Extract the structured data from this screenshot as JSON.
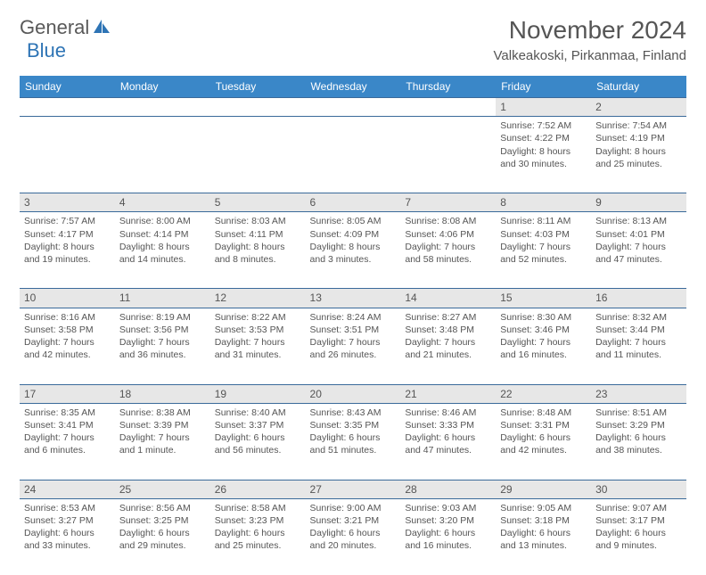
{
  "logo": {
    "word1": "General",
    "word2": "Blue"
  },
  "title": "November 2024",
  "location": "Valkeakoski, Pirkanmaa, Finland",
  "colors": {
    "header_bg": "#3a87c8",
    "daynum_bg": "#e7e7e7",
    "border": "#3a6a9a",
    "text": "#555555",
    "logo_blue": "#2e74b5"
  },
  "weekdays": [
    "Sunday",
    "Monday",
    "Tuesday",
    "Wednesday",
    "Thursday",
    "Friday",
    "Saturday"
  ],
  "weeks": [
    [
      null,
      null,
      null,
      null,
      null,
      {
        "d": "1",
        "sr": "7:52 AM",
        "ss": "4:22 PM",
        "dl": "Daylight: 8 hours and 30 minutes."
      },
      {
        "d": "2",
        "sr": "7:54 AM",
        "ss": "4:19 PM",
        "dl": "Daylight: 8 hours and 25 minutes."
      }
    ],
    [
      {
        "d": "3",
        "sr": "7:57 AM",
        "ss": "4:17 PM",
        "dl": "Daylight: 8 hours and 19 minutes."
      },
      {
        "d": "4",
        "sr": "8:00 AM",
        "ss": "4:14 PM",
        "dl": "Daylight: 8 hours and 14 minutes."
      },
      {
        "d": "5",
        "sr": "8:03 AM",
        "ss": "4:11 PM",
        "dl": "Daylight: 8 hours and 8 minutes."
      },
      {
        "d": "6",
        "sr": "8:05 AM",
        "ss": "4:09 PM",
        "dl": "Daylight: 8 hours and 3 minutes."
      },
      {
        "d": "7",
        "sr": "8:08 AM",
        "ss": "4:06 PM",
        "dl": "Daylight: 7 hours and 58 minutes."
      },
      {
        "d": "8",
        "sr": "8:11 AM",
        "ss": "4:03 PM",
        "dl": "Daylight: 7 hours and 52 minutes."
      },
      {
        "d": "9",
        "sr": "8:13 AM",
        "ss": "4:01 PM",
        "dl": "Daylight: 7 hours and 47 minutes."
      }
    ],
    [
      {
        "d": "10",
        "sr": "8:16 AM",
        "ss": "3:58 PM",
        "dl": "Daylight: 7 hours and 42 minutes."
      },
      {
        "d": "11",
        "sr": "8:19 AM",
        "ss": "3:56 PM",
        "dl": "Daylight: 7 hours and 36 minutes."
      },
      {
        "d": "12",
        "sr": "8:22 AM",
        "ss": "3:53 PM",
        "dl": "Daylight: 7 hours and 31 minutes."
      },
      {
        "d": "13",
        "sr": "8:24 AM",
        "ss": "3:51 PM",
        "dl": "Daylight: 7 hours and 26 minutes."
      },
      {
        "d": "14",
        "sr": "8:27 AM",
        "ss": "3:48 PM",
        "dl": "Daylight: 7 hours and 21 minutes."
      },
      {
        "d": "15",
        "sr": "8:30 AM",
        "ss": "3:46 PM",
        "dl": "Daylight: 7 hours and 16 minutes."
      },
      {
        "d": "16",
        "sr": "8:32 AM",
        "ss": "3:44 PM",
        "dl": "Daylight: 7 hours and 11 minutes."
      }
    ],
    [
      {
        "d": "17",
        "sr": "8:35 AM",
        "ss": "3:41 PM",
        "dl": "Daylight: 7 hours and 6 minutes."
      },
      {
        "d": "18",
        "sr": "8:38 AM",
        "ss": "3:39 PM",
        "dl": "Daylight: 7 hours and 1 minute."
      },
      {
        "d": "19",
        "sr": "8:40 AM",
        "ss": "3:37 PM",
        "dl": "Daylight: 6 hours and 56 minutes."
      },
      {
        "d": "20",
        "sr": "8:43 AM",
        "ss": "3:35 PM",
        "dl": "Daylight: 6 hours and 51 minutes."
      },
      {
        "d": "21",
        "sr": "8:46 AM",
        "ss": "3:33 PM",
        "dl": "Daylight: 6 hours and 47 minutes."
      },
      {
        "d": "22",
        "sr": "8:48 AM",
        "ss": "3:31 PM",
        "dl": "Daylight: 6 hours and 42 minutes."
      },
      {
        "d": "23",
        "sr": "8:51 AM",
        "ss": "3:29 PM",
        "dl": "Daylight: 6 hours and 38 minutes."
      }
    ],
    [
      {
        "d": "24",
        "sr": "8:53 AM",
        "ss": "3:27 PM",
        "dl": "Daylight: 6 hours and 33 minutes."
      },
      {
        "d": "25",
        "sr": "8:56 AM",
        "ss": "3:25 PM",
        "dl": "Daylight: 6 hours and 29 minutes."
      },
      {
        "d": "26",
        "sr": "8:58 AM",
        "ss": "3:23 PM",
        "dl": "Daylight: 6 hours and 25 minutes."
      },
      {
        "d": "27",
        "sr": "9:00 AM",
        "ss": "3:21 PM",
        "dl": "Daylight: 6 hours and 20 minutes."
      },
      {
        "d": "28",
        "sr": "9:03 AM",
        "ss": "3:20 PM",
        "dl": "Daylight: 6 hours and 16 minutes."
      },
      {
        "d": "29",
        "sr": "9:05 AM",
        "ss": "3:18 PM",
        "dl": "Daylight: 6 hours and 13 minutes."
      },
      {
        "d": "30",
        "sr": "9:07 AM",
        "ss": "3:17 PM",
        "dl": "Daylight: 6 hours and 9 minutes."
      }
    ]
  ]
}
